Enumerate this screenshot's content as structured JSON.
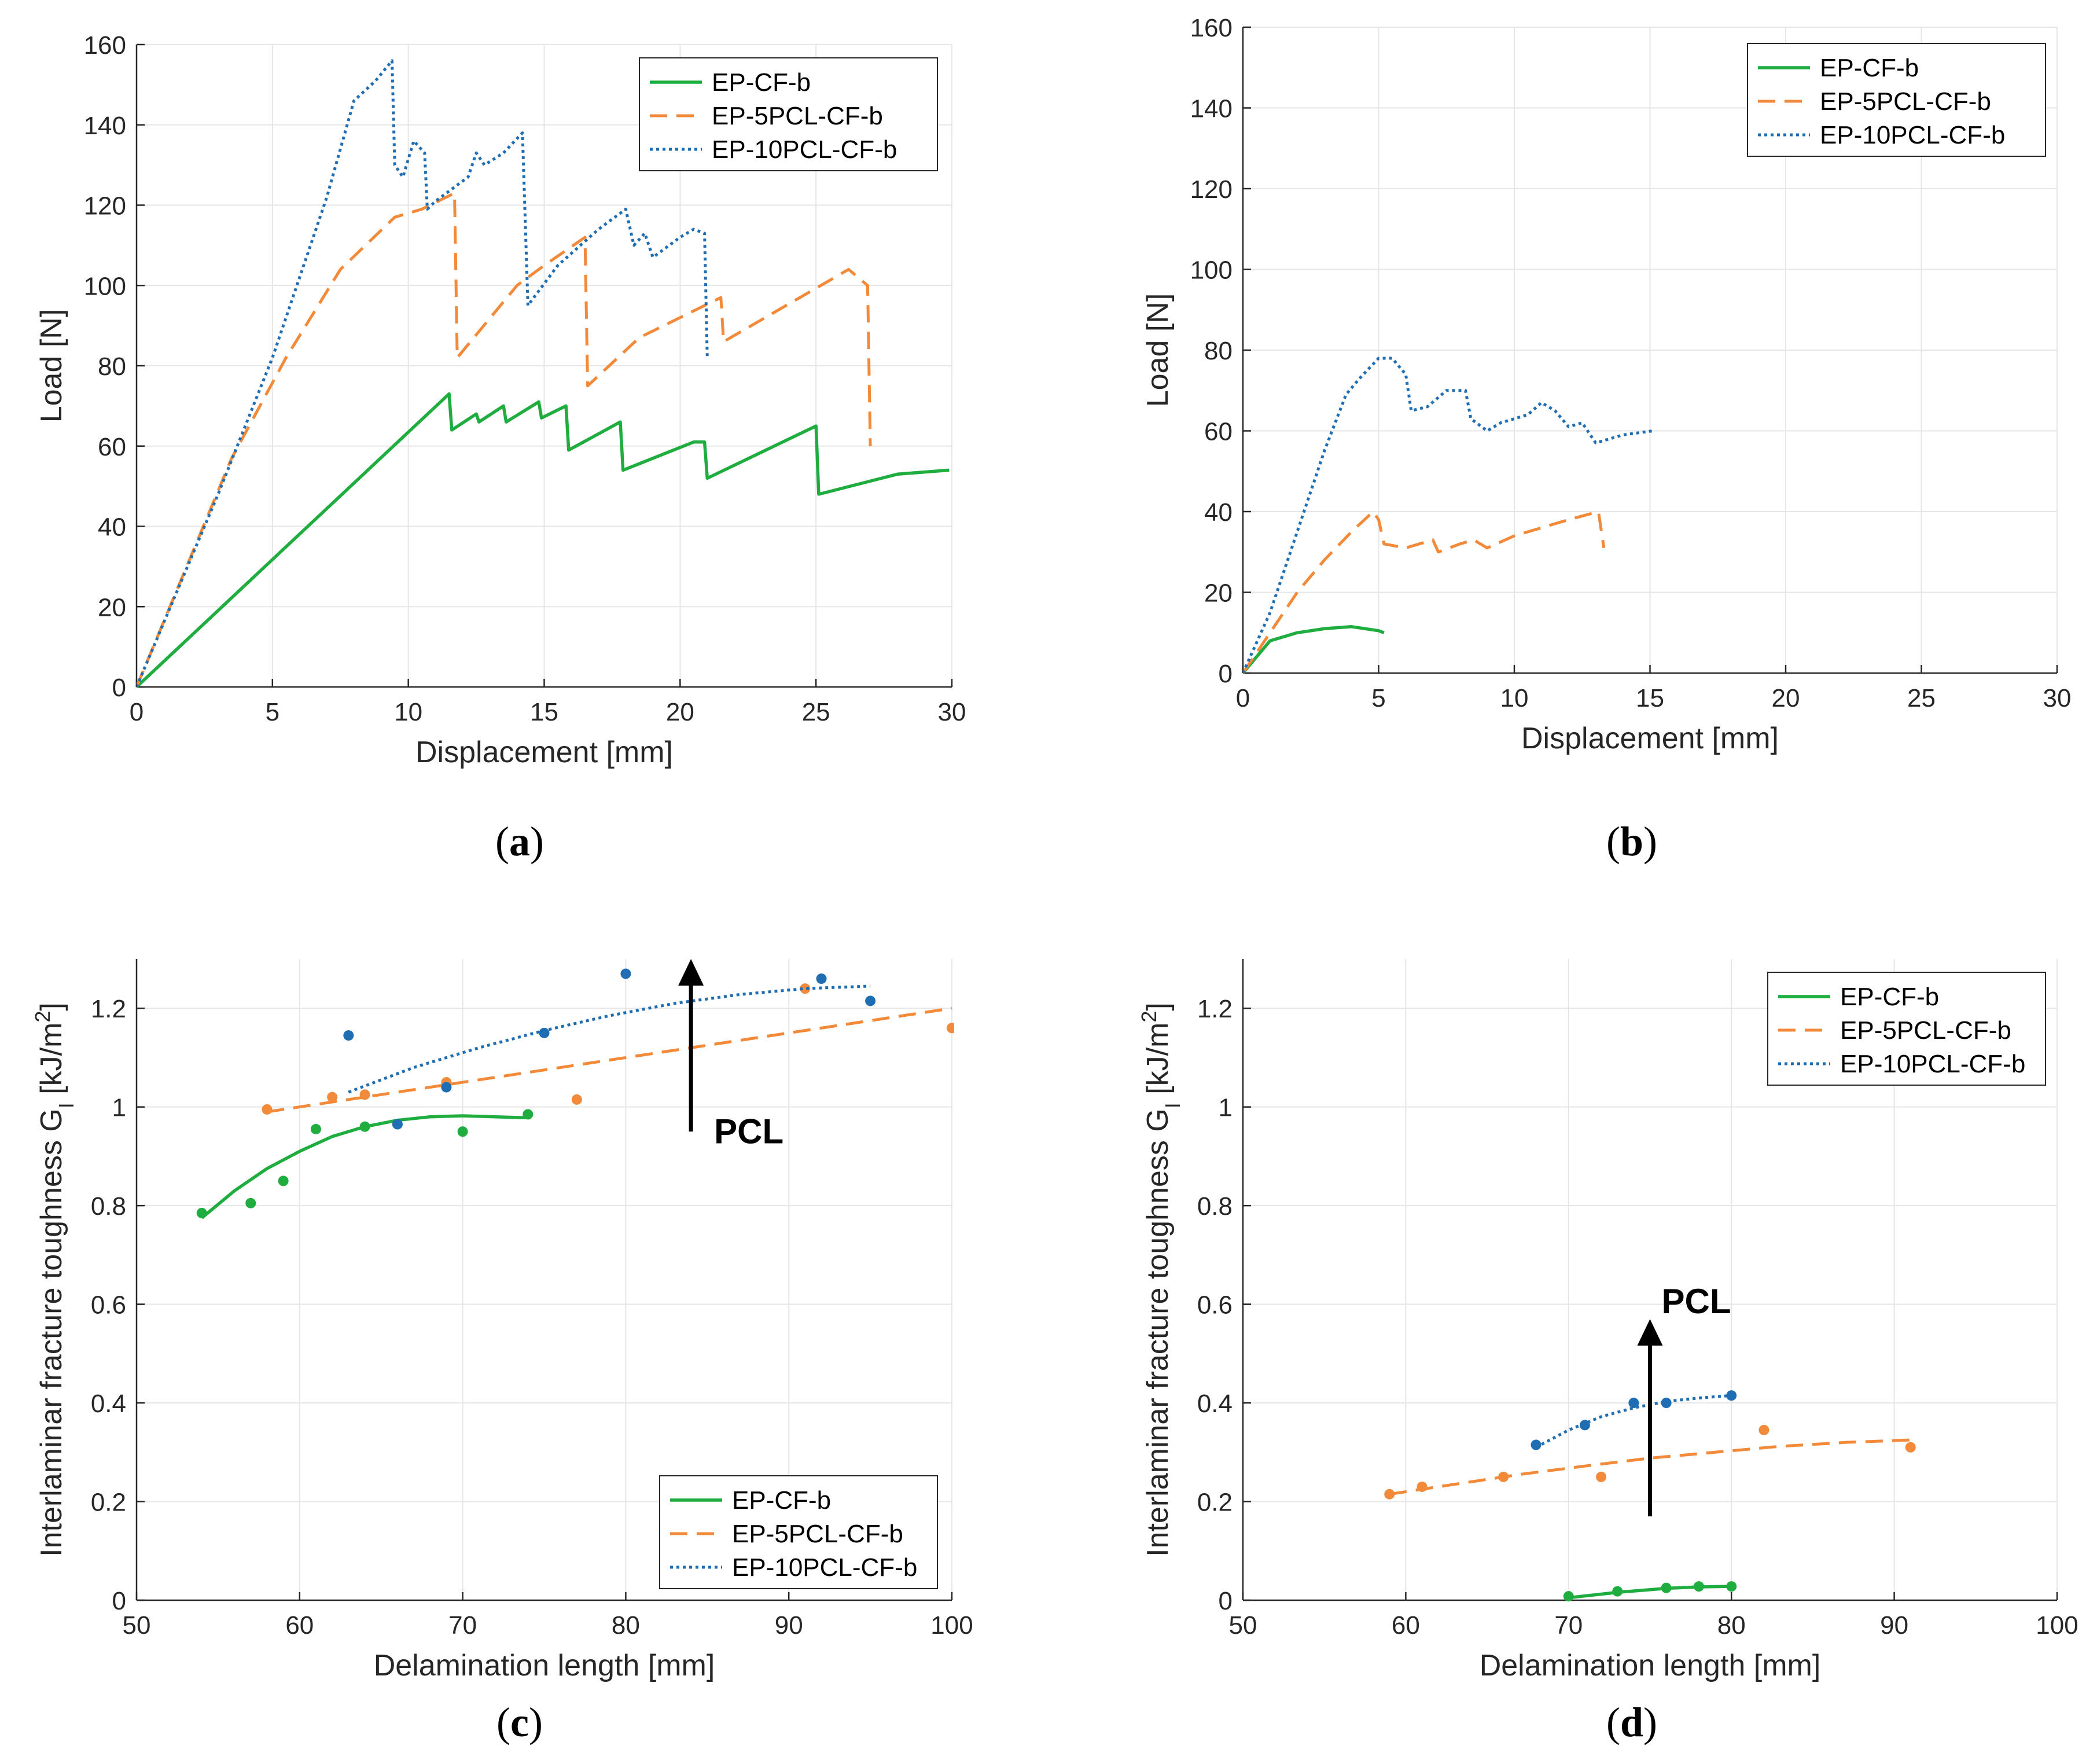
{
  "figure": {
    "colors": {
      "green": "#1fad3f",
      "orange": "#f28a3a",
      "blue": "#1f6eb4",
      "grid": "#e6e6e6",
      "axis": "#262626"
    },
    "series_names": [
      "EP-CF-b",
      "EP-5PCL-CF-b",
      "EP-10PCL-CF-b"
    ]
  },
  "chart_data": [
    {
      "id": "a",
      "type": "line",
      "caption": {
        "open": "(",
        "letter": "a",
        "close": ")"
      },
      "xlabel": "Displacement [mm]",
      "ylabel": "Load [N]",
      "xlim": [
        0,
        30
      ],
      "ylim": [
        0,
        160
      ],
      "xticks": [
        0,
        5,
        10,
        15,
        20,
        25,
        30
      ],
      "yticks": [
        0,
        20,
        40,
        60,
        80,
        100,
        120,
        140,
        160
      ],
      "grid": true,
      "legend": {
        "position": "top-right",
        "entries": [
          "EP-CF-b",
          "EP-5PCL-CF-b",
          "EP-10PCL-CF-b"
        ]
      },
      "series": [
        {
          "name": "EP-CF-b",
          "style": "solid",
          "color": "#1fad3f",
          "points": [
            [
              0,
              0
            ],
            [
              11.5,
              73
            ],
            [
              11.6,
              64
            ],
            [
              12.5,
              68
            ],
            [
              12.6,
              66
            ],
            [
              13.5,
              70
            ],
            [
              13.6,
              66
            ],
            [
              14.8,
              71
            ],
            [
              14.9,
              67
            ],
            [
              15.8,
              70
            ],
            [
              15.9,
              59
            ],
            [
              17.8,
              66
            ],
            [
              17.9,
              54
            ],
            [
              20.5,
              61
            ],
            [
              20.9,
              61
            ],
            [
              21.0,
              52
            ],
            [
              25.0,
              65
            ],
            [
              25.1,
              48
            ],
            [
              28,
              53
            ],
            [
              29.9,
              54
            ]
          ]
        },
        {
          "name": "EP-5PCL-CF-b",
          "style": "dashed",
          "color": "#f28a3a",
          "points": [
            [
              0,
              0
            ],
            [
              3.5,
              57
            ],
            [
              5.5,
              82
            ],
            [
              7.5,
              104
            ],
            [
              9.5,
              117
            ],
            [
              10.5,
              119
            ],
            [
              11.7,
              123
            ],
            [
              11.8,
              82
            ],
            [
              14,
              100
            ],
            [
              15,
              105
            ],
            [
              16.5,
              112
            ],
            [
              16.6,
              75
            ],
            [
              18.5,
              87
            ],
            [
              20,
              92
            ],
            [
              21.5,
              97
            ],
            [
              21.6,
              86
            ],
            [
              26.2,
              104
            ],
            [
              26.9,
              100
            ],
            [
              27,
              60
            ]
          ]
        },
        {
          "name": "EP-10PCL-CF-b",
          "style": "dotted",
          "color": "#1f6eb4",
          "points": [
            [
              0,
              0
            ],
            [
              3,
              48
            ],
            [
              5,
              82
            ],
            [
              7,
              122
            ],
            [
              8,
              146
            ],
            [
              8.8,
              151
            ],
            [
              9.4,
              156
            ],
            [
              9.5,
              130
            ],
            [
              9.8,
              127
            ],
            [
              10.2,
              136
            ],
            [
              10.6,
              133
            ],
            [
              10.7,
              119
            ],
            [
              11,
              121
            ],
            [
              11.8,
              125
            ],
            [
              12.2,
              127
            ],
            [
              12.5,
              133
            ],
            [
              12.8,
              130
            ],
            [
              13.5,
              133
            ],
            [
              14.2,
              138
            ],
            [
              14.4,
              95
            ],
            [
              15.5,
              105
            ],
            [
              17,
              114
            ],
            [
              18,
              119
            ],
            [
              18.3,
              110
            ],
            [
              18.7,
              113
            ],
            [
              19,
              107
            ],
            [
              20,
              112
            ],
            [
              20.5,
              114
            ],
            [
              20.9,
              113
            ],
            [
              21,
              82
            ]
          ]
        }
      ]
    },
    {
      "id": "b",
      "type": "line",
      "caption": {
        "open": "(",
        "letter": "b",
        "close": ")"
      },
      "xlabel": "Displacement [mm]",
      "ylabel": "Load [N]",
      "xlim": [
        0,
        30
      ],
      "ylim": [
        0,
        160
      ],
      "xticks": [
        0,
        5,
        10,
        15,
        20,
        25,
        30
      ],
      "yticks": [
        0,
        20,
        40,
        60,
        80,
        100,
        120,
        140,
        160
      ],
      "grid": true,
      "legend": {
        "position": "top-right",
        "entries": [
          "EP-CF-b",
          "EP-5PCL-CF-b",
          "EP-10PCL-CF-b"
        ]
      },
      "series": [
        {
          "name": "EP-CF-b",
          "style": "solid",
          "color": "#1fad3f",
          "points": [
            [
              0,
              0
            ],
            [
              1,
              8
            ],
            [
              2,
              10
            ],
            [
              3,
              11
            ],
            [
              4,
              11.5
            ],
            [
              4.5,
              11
            ],
            [
              5,
              10.5
            ],
            [
              5.2,
              10
            ]
          ]
        },
        {
          "name": "EP-5PCL-CF-b",
          "style": "dashed",
          "color": "#f28a3a",
          "points": [
            [
              0,
              0
            ],
            [
              1,
              10
            ],
            [
              2,
              20
            ],
            [
              3,
              28
            ],
            [
              4,
              35
            ],
            [
              4.8,
              40
            ],
            [
              5,
              38
            ],
            [
              5.2,
              32
            ],
            [
              6,
              31
            ],
            [
              7,
              33
            ],
            [
              7.2,
              30
            ],
            [
              8,
              32
            ],
            [
              8.5,
              33
            ],
            [
              9,
              31
            ],
            [
              10,
              34
            ],
            [
              12,
              38
            ],
            [
              13.1,
              40
            ],
            [
              13.3,
              31
            ]
          ]
        },
        {
          "name": "EP-10PCL-CF-b",
          "style": "dotted",
          "color": "#1f6eb4",
          "points": [
            [
              0,
              0
            ],
            [
              1,
              15
            ],
            [
              2,
              35
            ],
            [
              3,
              55
            ],
            [
              3.8,
              69
            ],
            [
              4.3,
              73
            ],
            [
              5,
              78
            ],
            [
              5.5,
              78
            ],
            [
              6,
              74
            ],
            [
              6.2,
              65
            ],
            [
              6.8,
              66
            ],
            [
              7.5,
              70
            ],
            [
              8.2,
              70
            ],
            [
              8.4,
              63
            ],
            [
              9,
              60
            ],
            [
              9.5,
              62
            ],
            [
              10.5,
              64
            ],
            [
              11,
              67
            ],
            [
              11.5,
              65
            ],
            [
              12,
              61
            ],
            [
              12.5,
              62
            ],
            [
              13,
              57
            ],
            [
              14,
              59
            ],
            [
              15.1,
              60
            ]
          ]
        }
      ]
    },
    {
      "id": "c",
      "type": "scatter",
      "caption": {
        "open": "(",
        "letter": "c",
        "close": ")"
      },
      "xlabel": "Delamination length [mm]",
      "ylabel": "Interlaminar fracture toughness G",
      "ylabel_sub": "I",
      "ylabel_unit": " [kJ/m",
      "ylabel_sup": "2",
      "ylabel_close": "]",
      "xlim": [
        50,
        100
      ],
      "ylim": [
        0,
        1.3
      ],
      "xticks": [
        50,
        60,
        70,
        80,
        90,
        100
      ],
      "yticks": [
        0,
        0.2,
        0.4,
        0.6,
        0.8,
        1,
        1.2
      ],
      "ytick_labels": [
        "0",
        "0.2",
        "0.4",
        "0.6",
        "0.8",
        "1",
        "1.2"
      ],
      "grid": true,
      "legend": {
        "position": "bottom-right",
        "entries": [
          "EP-CF-b",
          "EP-5PCL-CF-b",
          "EP-10PCL-CF-b"
        ]
      },
      "annotation": {
        "text": "PCL",
        "x": 84,
        "y_from": 0.95,
        "y_to": 1.3
      },
      "series": [
        {
          "name": "EP-CF-b",
          "color": "#1fad3f",
          "style": "solid",
          "points": [
            [
              54,
              0.785
            ],
            [
              57,
              0.805
            ],
            [
              59,
              0.85
            ],
            [
              61,
              0.955
            ],
            [
              64,
              0.96
            ],
            [
              66,
              0.965
            ],
            [
              70,
              0.95
            ],
            [
              74,
              0.985
            ]
          ],
          "fit": [
            [
              54,
              0.775
            ],
            [
              56,
              0.83
            ],
            [
              58,
              0.875
            ],
            [
              60,
              0.91
            ],
            [
              62,
              0.94
            ],
            [
              64,
              0.96
            ],
            [
              66,
              0.973
            ],
            [
              68,
              0.98
            ],
            [
              70,
              0.982
            ],
            [
              72,
              0.98
            ],
            [
              74,
              0.978
            ]
          ]
        },
        {
          "name": "EP-5PCL-CF-b",
          "color": "#f28a3a",
          "style": "dashed",
          "points": [
            [
              58,
              0.995
            ],
            [
              62,
              1.02
            ],
            [
              64,
              1.025
            ],
            [
              69,
              1.05
            ],
            [
              77,
              1.015
            ],
            [
              91,
              1.24
            ],
            [
              100,
              1.16
            ]
          ],
          "fit": [
            [
              58,
              0.99
            ],
            [
              100,
              1.2
            ]
          ]
        },
        {
          "name": "EP-10PCL-CF-b",
          "color": "#1f6eb4",
          "style": "dotted",
          "points": [
            [
              63,
              1.145
            ],
            [
              66,
              0.965
            ],
            [
              69,
              1.04
            ],
            [
              75,
              1.15
            ],
            [
              80,
              1.27
            ],
            [
              92,
              1.26
            ],
            [
              95,
              1.215
            ]
          ],
          "fit": [
            [
              63,
              1.03
            ],
            [
              67,
              1.08
            ],
            [
              71,
              1.12
            ],
            [
              75,
              1.155
            ],
            [
              79,
              1.185
            ],
            [
              83,
              1.21
            ],
            [
              87,
              1.228
            ],
            [
              91,
              1.24
            ],
            [
              95,
              1.245
            ]
          ]
        }
      ]
    },
    {
      "id": "d",
      "type": "scatter",
      "caption": {
        "open": "(",
        "letter": "d",
        "close": ")"
      },
      "xlabel": "Delamination length [mm]",
      "ylabel": "Interlaminar fracture toughness G",
      "ylabel_sub": "I",
      "ylabel_unit": " [kJ/m",
      "ylabel_sup": "2",
      "ylabel_close": "]",
      "xlim": [
        50,
        100
      ],
      "ylim": [
        0,
        1.3
      ],
      "xticks": [
        50,
        60,
        70,
        80,
        90,
        100
      ],
      "yticks": [
        0,
        0.2,
        0.4,
        0.6,
        0.8,
        1,
        1.2
      ],
      "ytick_labels": [
        "0",
        "0.2",
        "0.4",
        "0.6",
        "0.8",
        "1",
        "1.2"
      ],
      "grid": true,
      "legend": {
        "position": "top-right",
        "entries": [
          "EP-CF-b",
          "EP-5PCL-CF-b",
          "EP-10PCL-CF-b"
        ]
      },
      "annotation": {
        "text": "PCL",
        "x": 75,
        "y_from": 0.17,
        "y_to": 0.57
      },
      "series": [
        {
          "name": "EP-CF-b",
          "color": "#1fad3f",
          "style": "solid",
          "points": [
            [
              70,
              0.008
            ],
            [
              73,
              0.018
            ],
            [
              76,
              0.025
            ],
            [
              78,
              0.028
            ],
            [
              80,
              0.028
            ]
          ],
          "fit": [
            [
              70,
              0.005
            ],
            [
              73,
              0.016
            ],
            [
              76,
              0.024
            ],
            [
              78,
              0.027
            ],
            [
              80,
              0.028
            ]
          ]
        },
        {
          "name": "EP-5PCL-CF-b",
          "color": "#f28a3a",
          "style": "dashed",
          "points": [
            [
              59,
              0.215
            ],
            [
              61,
              0.23
            ],
            [
              66,
              0.25
            ],
            [
              72,
              0.25
            ],
            [
              82,
              0.345
            ],
            [
              91,
              0.31
            ]
          ],
          "fit": [
            [
              59,
              0.215
            ],
            [
              63,
              0.235
            ],
            [
              67,
              0.255
            ],
            [
              71,
              0.272
            ],
            [
              75,
              0.288
            ],
            [
              79,
              0.3
            ],
            [
              83,
              0.312
            ],
            [
              87,
              0.32
            ],
            [
              91,
              0.325
            ]
          ]
        },
        {
          "name": "EP-10PCL-CF-b",
          "color": "#1f6eb4",
          "style": "dotted",
          "points": [
            [
              68,
              0.315
            ],
            [
              71,
              0.355
            ],
            [
              74,
              0.4
            ],
            [
              76,
              0.4
            ],
            [
              80,
              0.415
            ]
          ],
          "fit": [
            [
              68,
              0.31
            ],
            [
              70,
              0.345
            ],
            [
              72,
              0.372
            ],
            [
              74,
              0.39
            ],
            [
              76,
              0.403
            ],
            [
              78,
              0.41
            ],
            [
              80,
              0.415
            ]
          ]
        }
      ]
    }
  ]
}
